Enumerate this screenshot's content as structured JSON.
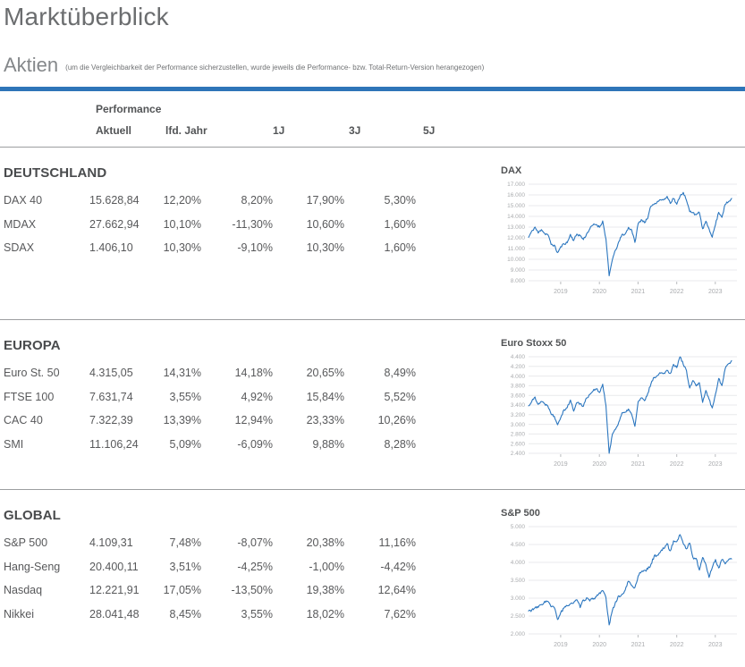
{
  "page": {
    "title": "Marktüberblick",
    "subtitle": "Aktien",
    "note": "(um die Vergleichbarkeit der Performance sicherzustellen, wurde jeweils die Performance- bzw. Total-Return-Version herangezogen)"
  },
  "colors": {
    "accent_bar": "#2e75b8",
    "chart_line": "#2b76bf",
    "grid_line": "#e9eaec",
    "axis_text": "#a9abae"
  },
  "table": {
    "group_header": "Performance",
    "columns": [
      "Aktuell",
      "lfd. Jahr",
      "1J",
      "3J",
      "5J"
    ],
    "sections": [
      {
        "title": "DEUTSCHLAND",
        "rows": [
          {
            "name": "DAX 40",
            "values": [
              "15.628,84",
              "12,20%",
              "8,20%",
              "17,90%",
              "5,30%"
            ]
          },
          {
            "name": "MDAX",
            "values": [
              "27.662,94",
              "10,10%",
              "-11,30%",
              "10,60%",
              "1,60%"
            ]
          },
          {
            "name": "SDAX",
            "values": [
              "1.406,10",
              "10,30%",
              "-9,10%",
              "10,30%",
              "1,60%"
            ]
          }
        ]
      },
      {
        "title": "EUROPA",
        "rows": [
          {
            "name": "Euro St. 50",
            "values": [
              "4.315,05",
              "14,31%",
              "14,18%",
              "20,65%",
              "8,49%"
            ]
          },
          {
            "name": "FTSE 100",
            "values": [
              "7.631,74",
              "3,55%",
              "4,92%",
              "15,84%",
              "5,52%"
            ]
          },
          {
            "name": "CAC 40",
            "values": [
              "7.322,39",
              "13,39%",
              "12,94%",
              "23,33%",
              "10,26%"
            ]
          },
          {
            "name": "SMI",
            "values": [
              "11.106,24",
              "5,09%",
              "-6,09%",
              "9,88%",
              "8,28%"
            ]
          }
        ]
      },
      {
        "title": "GLOBAL",
        "rows": [
          {
            "name": "S&P 500",
            "values": [
              "4.109,31",
              "7,48%",
              "-8,07%",
              "20,38%",
              "11,16%"
            ]
          },
          {
            "name": "Hang-Seng",
            "values": [
              "20.400,11",
              "3,51%",
              "-4,25%",
              "-1,00%",
              "-4,42%"
            ]
          },
          {
            "name": "Nasdaq",
            "values": [
              "12.221,91",
              "17,05%",
              "-13,50%",
              "19,38%",
              "12,64%"
            ]
          },
          {
            "name": "Nikkei",
            "values": [
              "28.041,48",
              "8,45%",
              "3,55%",
              "18,02%",
              "7,62%"
            ]
          }
        ]
      }
    ]
  },
  "chart_data": [
    {
      "type": "line",
      "title": "DAX",
      "line_color": "#2b76bf",
      "y_range": [
        8000,
        17000
      ],
      "y_ticks": [
        {
          "label": "17.000",
          "value": 17000
        },
        {
          "label": "16.000",
          "value": 16000
        },
        {
          "label": "15.000",
          "value": 15000
        },
        {
          "label": "14.000",
          "value": 14000
        },
        {
          "label": "13.000",
          "value": 13000
        },
        {
          "label": "12.000",
          "value": 12000
        },
        {
          "label": "11.000",
          "value": 11000
        },
        {
          "label": "10.000",
          "value": 10000
        },
        {
          "label": "9.000",
          "value": 9000
        },
        {
          "label": "8.000",
          "value": 8000
        }
      ],
      "x_ticks": [
        {
          "label": "2019",
          "pos": 0.158
        },
        {
          "label": "2020",
          "pos": 0.349
        },
        {
          "label": "2021",
          "pos": 0.539
        },
        {
          "label": "2022",
          "pos": 0.73
        },
        {
          "label": "2023",
          "pos": 0.92
        }
      ],
      "series": [
        {
          "name": "DAX",
          "values": [
            12050,
            12600,
            13000,
            12450,
            12800,
            12400,
            12300,
            11400,
            11300,
            10600,
            11150,
            11450,
            11550,
            12300,
            11750,
            12350,
            12200,
            11850,
            12350,
            12850,
            13200,
            13250,
            13000,
            13550,
            11900,
            8450,
            10000,
            10850,
            11600,
            12300,
            12350,
            12950,
            12750,
            11550,
            13300,
            13700,
            13450,
            13800,
            15000,
            15150,
            15400,
            15550,
            15550,
            15850,
            15250,
            15700,
            15100,
            15900,
            16250,
            15450,
            14450,
            14400,
            14100,
            14400,
            12800,
            13500,
            12850,
            12100,
            13250,
            14400,
            13950,
            15100,
            15350,
            15628
          ]
        }
      ]
    },
    {
      "type": "line",
      "title": "Euro Stoxx 50",
      "line_color": "#2b76bf",
      "y_range": [
        2400,
        4400
      ],
      "y_ticks": [
        {
          "label": "4.400",
          "value": 4400
        },
        {
          "label": "4.200",
          "value": 4200
        },
        {
          "label": "4.000",
          "value": 4000
        },
        {
          "label": "3.800",
          "value": 3800
        },
        {
          "label": "3.600",
          "value": 3600
        },
        {
          "label": "3.400",
          "value": 3400
        },
        {
          "label": "3.200",
          "value": 3200
        },
        {
          "label": "3.000",
          "value": 3000
        },
        {
          "label": "2.800",
          "value": 2800
        },
        {
          "label": "2.600",
          "value": 2600
        },
        {
          "label": "2.400",
          "value": 2400
        }
      ],
      "x_ticks": [
        {
          "label": "2019",
          "pos": 0.158
        },
        {
          "label": "2020",
          "pos": 0.349
        },
        {
          "label": "2021",
          "pos": 0.539
        },
        {
          "label": "2022",
          "pos": 0.73
        },
        {
          "label": "2023",
          "pos": 0.92
        }
      ],
      "series": [
        {
          "name": "Euro Stoxx 50",
          "values": [
            3380,
            3480,
            3560,
            3420,
            3480,
            3420,
            3390,
            3220,
            3170,
            3000,
            3150,
            3300,
            3350,
            3500,
            3280,
            3450,
            3430,
            3380,
            3550,
            3620,
            3700,
            3740,
            3650,
            3830,
            3380,
            2400,
            2800,
            2900,
            3050,
            3230,
            3240,
            3320,
            3200,
            2960,
            3460,
            3550,
            3480,
            3640,
            3850,
            3970,
            4020,
            4070,
            4060,
            4120,
            4050,
            4250,
            4180,
            4400,
            4250,
            4100,
            3750,
            3900,
            3800,
            3850,
            3450,
            3700,
            3520,
            3330,
            3620,
            3960,
            3800,
            4160,
            4250,
            4315
          ]
        }
      ]
    },
    {
      "type": "line",
      "title": "S&P 500",
      "line_color": "#2b76bf",
      "y_range": [
        2000,
        5000
      ],
      "y_ticks": [
        {
          "label": "5.000",
          "value": 5000
        },
        {
          "label": "4.500",
          "value": 4500
        },
        {
          "label": "4.000",
          "value": 4000
        },
        {
          "label": "3.500",
          "value": 3500
        },
        {
          "label": "3.000",
          "value": 3000
        },
        {
          "label": "2.500",
          "value": 2500
        },
        {
          "label": "2.000",
          "value": 2000
        }
      ],
      "x_ticks": [
        {
          "label": "2019",
          "pos": 0.158
        },
        {
          "label": "2020",
          "pos": 0.349
        },
        {
          "label": "2021",
          "pos": 0.539
        },
        {
          "label": "2022",
          "pos": 0.73
        },
        {
          "label": "2023",
          "pos": 0.92
        }
      ],
      "series": [
        {
          "name": "S&P 500",
          "values": [
            2640,
            2670,
            2720,
            2750,
            2820,
            2900,
            2910,
            2760,
            2740,
            2400,
            2600,
            2710,
            2790,
            2850,
            2870,
            2945,
            2750,
            2940,
            3000,
            2925,
            2980,
            3040,
            3140,
            3230,
            3000,
            2240,
            2650,
            2900,
            3050,
            3100,
            3220,
            3480,
            3360,
            3280,
            3620,
            3750,
            3770,
            3810,
            3940,
            4180,
            4200,
            4300,
            4400,
            4520,
            4310,
            4600,
            4570,
            4790,
            4520,
            4380,
            4540,
            4130,
            4110,
            3790,
            4130,
            3950,
            3590,
            3870,
            4080,
            3840,
            4080,
            3970,
            4050,
            4109
          ]
        }
      ]
    }
  ]
}
